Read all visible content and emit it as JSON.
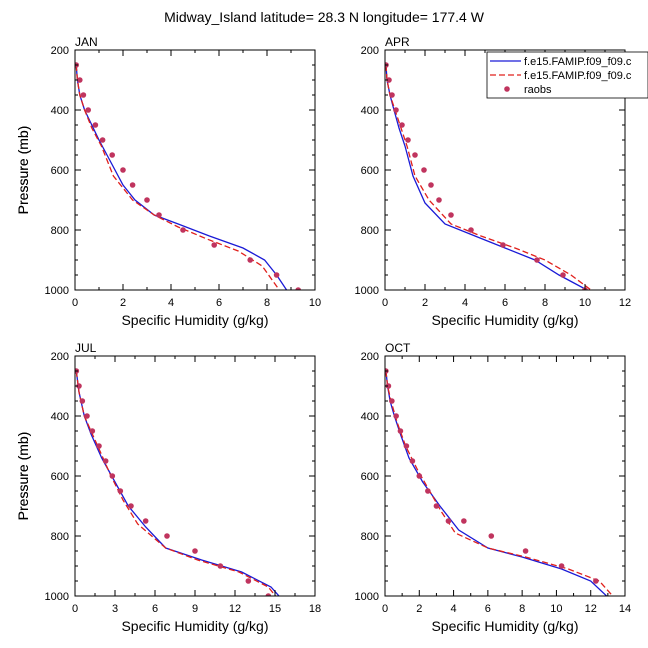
{
  "figure": {
    "title": "Midway_Island  latitude= 28.3 N longitude= 177.4 W",
    "xlabel": "Specific Humidity (g/kg)",
    "ylabel": "Pressure (mb)"
  },
  "colors": {
    "model_a": "#1a1ad6",
    "model_b": "#e0201c",
    "obs": "#c0345e",
    "axis": "#000000"
  },
  "legend": {
    "placement": "top-right",
    "entries": [
      {
        "label": "f.e15.FAMIP.f09_f09.c",
        "style": "solid",
        "color_key": "model_a"
      },
      {
        "label": "f.e15.FAMIP.f09_f09.c",
        "style": "dashed",
        "color_key": "model_b"
      },
      {
        "label": "raobs",
        "style": "marker",
        "color_key": "obs"
      }
    ]
  },
  "chart_data": [
    {
      "type": "line",
      "title": "JAN",
      "xlim": [
        0,
        10
      ],
      "xticks": [
        0,
        2,
        4,
        6,
        8,
        10
      ],
      "ylim": [
        1000,
        200
      ],
      "yticks": [
        200,
        400,
        600,
        800,
        1000
      ],
      "series": [
        {
          "name": "f.e15.FAMIP.f09_f09.c",
          "style": "solid",
          "x": [
            0.05,
            0.1,
            0.2,
            0.4,
            0.7,
            1.0,
            1.4,
            2.0,
            2.5,
            3.3,
            4.3,
            5.6,
            7.0,
            7.9,
            8.4,
            8.9
          ],
          "y": [
            250,
            300,
            350,
            400,
            450,
            500,
            560,
            650,
            700,
            750,
            780,
            820,
            860,
            900,
            950,
            1010
          ]
        },
        {
          "name": "f.e15.FAMIP.f09_f09.c",
          "style": "dashed",
          "x": [
            0.05,
            0.1,
            0.2,
            0.4,
            0.7,
            1.1,
            1.6,
            2.4,
            3.3,
            4.3,
            5.5,
            6.8,
            7.8,
            8.6
          ],
          "y": [
            250,
            300,
            350,
            400,
            460,
            520,
            620,
            700,
            750,
            790,
            830,
            870,
            920,
            1010
          ]
        },
        {
          "name": "raobs",
          "style": "marker",
          "x": [
            0.05,
            0.2,
            0.35,
            0.55,
            0.85,
            1.15,
            1.55,
            2.0,
            2.4,
            3.0,
            3.5,
            4.5,
            5.8,
            7.3,
            8.4,
            9.3
          ],
          "y": [
            250,
            300,
            350,
            400,
            450,
            500,
            550,
            600,
            650,
            700,
            750,
            800,
            850,
            900,
            950,
            1000
          ]
        }
      ]
    },
    {
      "type": "line",
      "title": "APR",
      "xlim": [
        0,
        12
      ],
      "xticks": [
        0,
        2,
        4,
        6,
        8,
        10,
        12
      ],
      "ylim": [
        1000,
        200
      ],
      "yticks": [
        200,
        400,
        600,
        800,
        1000
      ],
      "series": [
        {
          "name": "f.e15.FAMIP.f09_f09.c",
          "style": "solid",
          "x": [
            0.05,
            0.1,
            0.25,
            0.45,
            0.7,
            1.0,
            1.4,
            2.0,
            3.0,
            4.5,
            6.0,
            7.5,
            8.7,
            10.1
          ],
          "y": [
            250,
            300,
            350,
            400,
            460,
            520,
            620,
            710,
            780,
            820,
            860,
            900,
            950,
            1000
          ]
        },
        {
          "name": "f.e15.FAMIP.f09_f09.c",
          "style": "dashed",
          "x": [
            0.05,
            0.1,
            0.25,
            0.5,
            0.8,
            1.1,
            1.5,
            2.2,
            3.3,
            4.8,
            6.5,
            8.0,
            9.3,
            10.7
          ],
          "y": [
            250,
            300,
            350,
            400,
            460,
            520,
            620,
            700,
            780,
            820,
            860,
            900,
            950,
            1020
          ]
        },
        {
          "name": "raobs",
          "style": "marker",
          "x": [
            0.05,
            0.2,
            0.35,
            0.55,
            0.85,
            1.15,
            1.5,
            1.95,
            2.3,
            2.7,
            3.3,
            4.3,
            5.9,
            7.6,
            8.9,
            10.0
          ],
          "y": [
            250,
            300,
            350,
            400,
            450,
            500,
            550,
            600,
            650,
            700,
            750,
            800,
            850,
            900,
            950,
            1000
          ]
        }
      ]
    },
    {
      "type": "line",
      "title": "JUL",
      "xlim": [
        0,
        18
      ],
      "xticks": [
        0,
        3,
        6,
        9,
        12,
        15,
        18
      ],
      "ylim": [
        1000,
        200
      ],
      "yticks": [
        200,
        400,
        600,
        800,
        1000
      ],
      "series": [
        {
          "name": "f.e15.FAMIP.f09_f09.c",
          "style": "solid",
          "x": [
            0.1,
            0.3,
            0.7,
            1.2,
            2.0,
            3.0,
            4.0,
            5.3,
            6.8,
            9.5,
            12.5,
            14.7,
            15.7
          ],
          "y": [
            250,
            320,
            400,
            460,
            540,
            620,
            700,
            770,
            840,
            880,
            920,
            970,
            1020
          ]
        },
        {
          "name": "f.e15.FAMIP.f09_f09.c",
          "style": "dashed",
          "x": [
            0.1,
            0.3,
            0.7,
            1.2,
            2.0,
            2.7,
            3.6,
            4.7,
            6.8,
            9.2,
            12.3,
            14.5,
            15.4
          ],
          "y": [
            250,
            320,
            400,
            450,
            530,
            600,
            680,
            760,
            840,
            880,
            920,
            970,
            1020
          ]
        },
        {
          "name": "raobs",
          "style": "marker",
          "x": [
            0.1,
            0.3,
            0.55,
            0.9,
            1.3,
            1.8,
            2.3,
            2.8,
            3.4,
            4.2,
            5.3,
            6.9,
            9.0,
            10.9,
            13.0,
            14.5
          ],
          "y": [
            250,
            300,
            350,
            400,
            450,
            500,
            550,
            600,
            650,
            700,
            750,
            800,
            850,
            900,
            950,
            1000
          ]
        }
      ]
    },
    {
      "type": "line",
      "title": "OCT",
      "xlim": [
        0,
        14
      ],
      "xticks": [
        0,
        2,
        4,
        6,
        8,
        10,
        12,
        14
      ],
      "ylim": [
        1000,
        200
      ],
      "yticks": [
        200,
        400,
        600,
        800,
        1000
      ],
      "series": [
        {
          "name": "f.e15.FAMIP.f09_f09.c",
          "style": "solid",
          "x": [
            0.05,
            0.15,
            0.3,
            0.55,
            0.9,
            1.4,
            2.2,
            3.2,
            4.3,
            6.0,
            8.0,
            10.3,
            12.0,
            13.3
          ],
          "y": [
            250,
            300,
            350,
            400,
            460,
            540,
            620,
            700,
            780,
            840,
            870,
            910,
            950,
            1020
          ]
        },
        {
          "name": "f.e15.FAMIP.f09_f09.c",
          "style": "dashed",
          "x": [
            0.05,
            0.15,
            0.35,
            0.7,
            1.2,
            1.9,
            2.6,
            3.3,
            4.1,
            6.0,
            8.2,
            10.7,
            12.5,
            13.6
          ],
          "y": [
            250,
            300,
            350,
            420,
            500,
            580,
            650,
            720,
            790,
            840,
            870,
            910,
            950,
            1020
          ]
        },
        {
          "name": "raobs",
          "style": "marker",
          "x": [
            0.05,
            0.2,
            0.4,
            0.65,
            0.9,
            1.25,
            1.6,
            2.0,
            2.5,
            3.0,
            3.7,
            4.6,
            6.2,
            8.2,
            10.3,
            12.3
          ],
          "y": [
            250,
            300,
            350,
            400,
            450,
            500,
            550,
            600,
            650,
            700,
            750,
            750,
            800,
            850,
            900,
            950
          ]
        }
      ]
    }
  ]
}
